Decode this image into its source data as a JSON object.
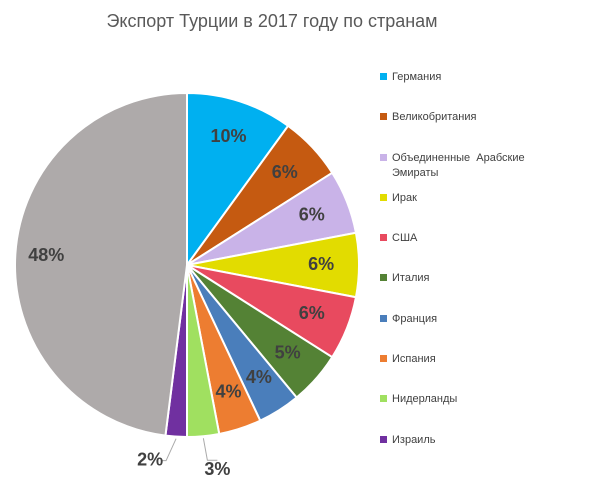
{
  "chart_data": {
    "type": "pie",
    "title": "Экспорт Турции в 2017 году по странам",
    "categories": [
      "Германия",
      "Великобритания",
      "Объединенные  Арабские Эмираты",
      "Ирак",
      "США",
      "Италия",
      "Франция",
      "Испания",
      "Нидерланды",
      "Израиль",
      null
    ],
    "values": [
      10,
      6,
      6,
      6,
      6,
      5,
      4,
      4,
      3,
      2,
      48
    ],
    "value_labels": [
      "10%",
      "6%",
      "6%",
      "6%",
      "6%",
      "5%",
      "4%",
      "4%",
      "3%",
      "2%",
      "48%"
    ],
    "colors": [
      "#00b0f0",
      "#c55a11",
      "#c9b3e8",
      "#e2dc00",
      "#e84a5f",
      "#548235",
      "#4a7ebb",
      "#ed7d31",
      "#a0e060",
      "#7030a0",
      "#aeaaaa"
    ],
    "legend": "right"
  }
}
